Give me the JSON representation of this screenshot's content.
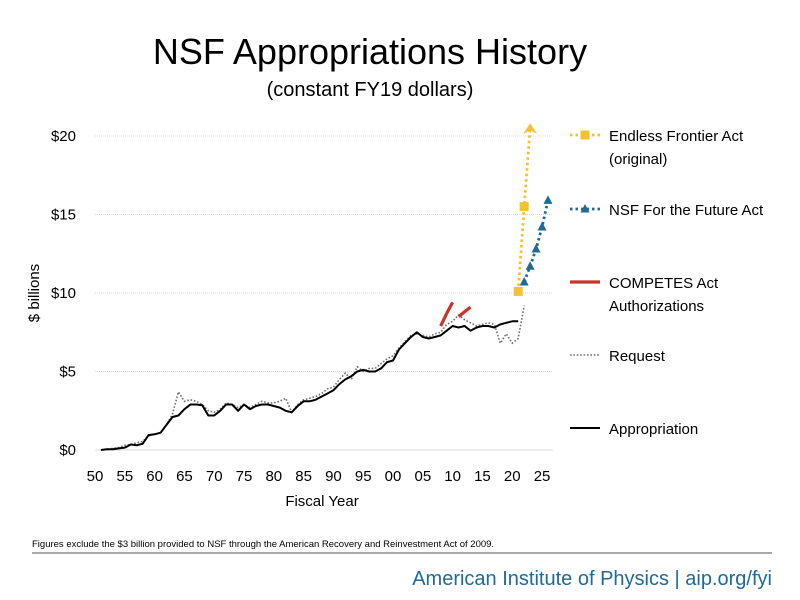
{
  "chart_data": {
    "type": "line",
    "title": "NSF Appropriations History",
    "subtitle": "(constant FY19 dollars)",
    "xlabel": "Fiscal Year",
    "ylabel": "$ billions",
    "xlim": [
      1950,
      2026
    ],
    "ylim": [
      0,
      20
    ],
    "x_ticks": [
      {
        "value": 1950,
        "label": "50"
      },
      {
        "value": 1955,
        "label": "55"
      },
      {
        "value": 1960,
        "label": "60"
      },
      {
        "value": 1965,
        "label": "65"
      },
      {
        "value": 1970,
        "label": "70"
      },
      {
        "value": 1975,
        "label": "75"
      },
      {
        "value": 1980,
        "label": "80"
      },
      {
        "value": 1985,
        "label": "85"
      },
      {
        "value": 1990,
        "label": "90"
      },
      {
        "value": 1995,
        "label": "95"
      },
      {
        "value": 2000,
        "label": "00"
      },
      {
        "value": 2005,
        "label": "05"
      },
      {
        "value": 2010,
        "label": "10"
      },
      {
        "value": 2015,
        "label": "15"
      },
      {
        "value": 2020,
        "label": "20"
      },
      {
        "value": 2025,
        "label": "25"
      }
    ],
    "y_ticks": [
      {
        "value": 0,
        "label": "$0"
      },
      {
        "value": 5,
        "label": "$5"
      },
      {
        "value": 10,
        "label": "$10"
      },
      {
        "value": 15,
        "label": "$15"
      },
      {
        "value": 20,
        "label": "$20"
      }
    ],
    "grid": "horizontal",
    "colors": {
      "endless": "#F5C12E",
      "future": "#1F6A96",
      "competes": "#C8352B",
      "request": "#707070",
      "appropriation": "#000000",
      "grid": "#D9D9D9",
      "brand": "#1F6A96"
    },
    "series": [
      {
        "key": "endless",
        "name": "Endless Frontier Act (original)",
        "legend_lines": [
          "Endless Frontier Act",
          "(original)"
        ],
        "style": "dotted-square-arrow",
        "points": [
          [
            2021,
            10.1
          ],
          [
            2022,
            15.5
          ],
          [
            2023,
            20.5
          ]
        ]
      },
      {
        "key": "future",
        "name": "NSF For the Future Act",
        "legend_lines": [
          "NSF For the Future Act"
        ],
        "style": "dotted-triangle",
        "points": [
          [
            2022,
            10.7
          ],
          [
            2023,
            11.7
          ],
          [
            2024,
            12.8
          ],
          [
            2025,
            14.2
          ],
          [
            2026,
            15.9
          ]
        ]
      },
      {
        "key": "competes",
        "name": "COMPETES Act Authorizations",
        "legend_lines": [
          "COMPETES Act",
          "Authorizations"
        ],
        "style": "solid-thick",
        "segments": [
          [
            [
              2008,
              7.9
            ],
            [
              2009,
              8.7
            ],
            [
              2010,
              9.4
            ]
          ],
          [
            [
              2011,
              8.5
            ],
            [
              2012,
              8.8
            ],
            [
              2013,
              9.1
            ]
          ]
        ]
      },
      {
        "key": "request",
        "name": "Request",
        "legend_lines": [
          "Request"
        ],
        "style": "dotted",
        "points": [
          [
            1951,
            0.0
          ],
          [
            1952,
            0.05
          ],
          [
            1953,
            0.1
          ],
          [
            1954,
            0.15
          ],
          [
            1955,
            0.3
          ],
          [
            1956,
            0.35
          ],
          [
            1957,
            0.45
          ],
          [
            1958,
            0.55
          ],
          [
            1959,
            0.9
          ],
          [
            1960,
            1.0
          ],
          [
            1961,
            1.1
          ],
          [
            1962,
            1.6
          ],
          [
            1963,
            2.3
          ],
          [
            1964,
            3.7
          ],
          [
            1965,
            3.1
          ],
          [
            1966,
            3.2
          ],
          [
            1967,
            3.1
          ],
          [
            1968,
            2.9
          ],
          [
            1969,
            2.5
          ],
          [
            1970,
            2.4
          ],
          [
            1971,
            2.6
          ],
          [
            1972,
            3.0
          ],
          [
            1973,
            2.9
          ],
          [
            1974,
            2.7
          ],
          [
            1975,
            2.9
          ],
          [
            1976,
            2.7
          ],
          [
            1977,
            2.9
          ],
          [
            1978,
            3.1
          ],
          [
            1979,
            3.0
          ],
          [
            1980,
            3.0
          ],
          [
            1981,
            3.1
          ],
          [
            1982,
            3.3
          ],
          [
            1983,
            2.4
          ],
          [
            1984,
            2.9
          ],
          [
            1985,
            3.2
          ],
          [
            1986,
            3.3
          ],
          [
            1987,
            3.4
          ],
          [
            1988,
            3.6
          ],
          [
            1989,
            3.9
          ],
          [
            1990,
            4.0
          ],
          [
            1991,
            4.5
          ],
          [
            1992,
            4.9
          ],
          [
            1993,
            4.5
          ],
          [
            1994,
            5.3
          ],
          [
            1995,
            5.0
          ],
          [
            1996,
            5.2
          ],
          [
            1997,
            5.2
          ],
          [
            1998,
            5.5
          ],
          [
            1999,
            5.8
          ],
          [
            2000,
            6.0
          ],
          [
            2001,
            6.5
          ],
          [
            2002,
            6.9
          ],
          [
            2003,
            7.3
          ],
          [
            2004,
            7.4
          ],
          [
            2005,
            7.3
          ],
          [
            2006,
            7.2
          ],
          [
            2007,
            7.4
          ],
          [
            2008,
            7.5
          ],
          [
            2009,
            8.0
          ],
          [
            2010,
            8.2
          ],
          [
            2011,
            8.6
          ],
          [
            2012,
            8.3
          ],
          [
            2013,
            8.1
          ],
          [
            2014,
            7.9
          ],
          [
            2015,
            8.0
          ],
          [
            2016,
            8.1
          ],
          [
            2017,
            8.0
          ],
          [
            2018,
            6.8
          ],
          [
            2019,
            7.4
          ],
          [
            2020,
            6.8
          ],
          [
            2021,
            7.1
          ],
          [
            2022,
            9.2
          ]
        ]
      },
      {
        "key": "appropriation",
        "name": "Appropriation",
        "legend_lines": [
          "Appropriation"
        ],
        "style": "solid",
        "points": [
          [
            1951,
            0.0
          ],
          [
            1952,
            0.05
          ],
          [
            1953,
            0.05
          ],
          [
            1954,
            0.1
          ],
          [
            1955,
            0.15
          ],
          [
            1956,
            0.35
          ],
          [
            1957,
            0.3
          ],
          [
            1958,
            0.4
          ],
          [
            1959,
            0.95
          ],
          [
            1960,
            1.0
          ],
          [
            1961,
            1.1
          ],
          [
            1962,
            1.6
          ],
          [
            1963,
            2.1
          ],
          [
            1964,
            2.2
          ],
          [
            1965,
            2.6
          ],
          [
            1966,
            2.9
          ],
          [
            1967,
            2.9
          ],
          [
            1968,
            2.85
          ],
          [
            1969,
            2.2
          ],
          [
            1970,
            2.2
          ],
          [
            1971,
            2.5
          ],
          [
            1972,
            2.9
          ],
          [
            1973,
            2.9
          ],
          [
            1974,
            2.5
          ],
          [
            1975,
            2.9
          ],
          [
            1976,
            2.6
          ],
          [
            1977,
            2.8
          ],
          [
            1978,
            2.9
          ],
          [
            1979,
            2.9
          ],
          [
            1980,
            2.8
          ],
          [
            1981,
            2.7
          ],
          [
            1982,
            2.5
          ],
          [
            1983,
            2.4
          ],
          [
            1984,
            2.8
          ],
          [
            1985,
            3.1
          ],
          [
            1986,
            3.1
          ],
          [
            1987,
            3.2
          ],
          [
            1988,
            3.4
          ],
          [
            1989,
            3.6
          ],
          [
            1990,
            3.8
          ],
          [
            1991,
            4.2
          ],
          [
            1992,
            4.5
          ],
          [
            1993,
            4.7
          ],
          [
            1994,
            5.0
          ],
          [
            1995,
            5.1
          ],
          [
            1996,
            5.0
          ],
          [
            1997,
            5.0
          ],
          [
            1998,
            5.2
          ],
          [
            1999,
            5.6
          ],
          [
            2000,
            5.7
          ],
          [
            2001,
            6.4
          ],
          [
            2002,
            6.8
          ],
          [
            2003,
            7.2
          ],
          [
            2004,
            7.5
          ],
          [
            2005,
            7.2
          ],
          [
            2006,
            7.1
          ],
          [
            2007,
            7.2
          ],
          [
            2008,
            7.3
          ],
          [
            2009,
            7.6
          ],
          [
            2010,
            7.9
          ],
          [
            2011,
            7.8
          ],
          [
            2012,
            7.9
          ],
          [
            2013,
            7.6
          ],
          [
            2014,
            7.8
          ],
          [
            2015,
            7.9
          ],
          [
            2016,
            7.9
          ],
          [
            2017,
            7.8
          ],
          [
            2018,
            8.0
          ],
          [
            2019,
            8.1
          ],
          [
            2020,
            8.2
          ],
          [
            2021,
            8.2
          ]
        ]
      }
    ],
    "legend_order": [
      "endless",
      "future",
      "competes",
      "request",
      "appropriation"
    ],
    "legend_position": "right"
  },
  "footnote": "Figures exclude the $3 billion provided to NSF through the American Recovery and Reinvestment Act of 2009.",
  "brand": "American Institute of Physics | aip.org/fyi"
}
